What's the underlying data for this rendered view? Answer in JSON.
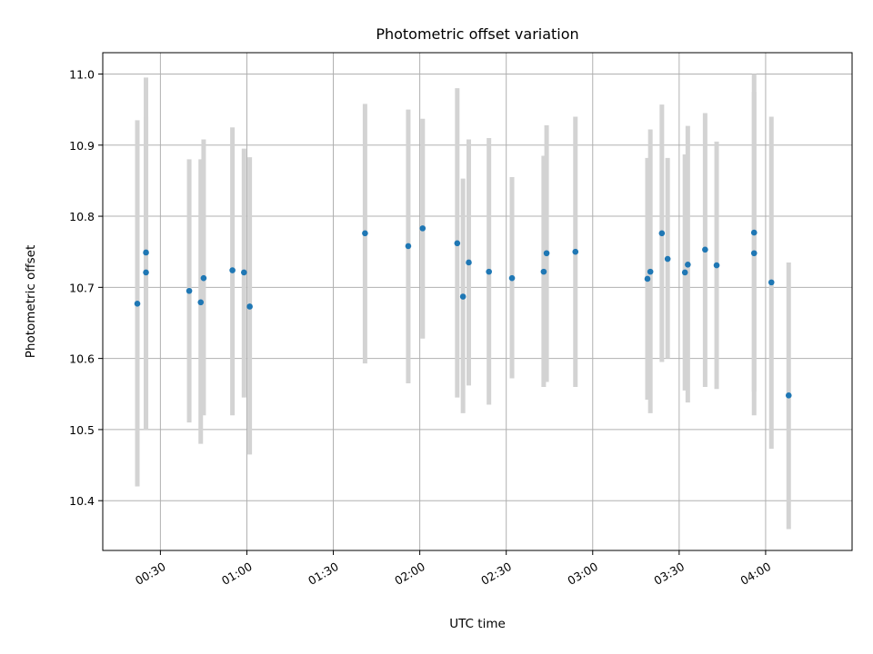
{
  "chart_data": {
    "type": "scatter",
    "title": "Photometric offset variation",
    "xlabel": "UTC time",
    "ylabel": "Photometric offset",
    "x_range": [
      "00:10",
      "04:30"
    ],
    "ylim": [
      10.33,
      11.03
    ],
    "x_ticks": [
      "00:30",
      "01:00",
      "01:30",
      "02:00",
      "02:30",
      "03:00",
      "03:30",
      "04:00"
    ],
    "y_ticks": [
      "10.4",
      "10.5",
      "10.6",
      "10.7",
      "10.8",
      "10.9",
      "11.0"
    ],
    "grid": true,
    "colors": {
      "point": "#1f77b4",
      "errorbar": "#d3d3d3",
      "grid": "#b0b0b0"
    },
    "points": [
      {
        "x": "00:22",
        "y": 10.677,
        "ylo": 10.42,
        "yhi": 10.935
      },
      {
        "x": "00:25",
        "y": 10.749,
        "ylo": 10.5,
        "yhi": 10.995
      },
      {
        "x": "00:25",
        "y": 10.721,
        "ylo": 10.5,
        "yhi": 10.94
      },
      {
        "x": "00:40",
        "y": 10.695,
        "ylo": 10.51,
        "yhi": 10.88
      },
      {
        "x": "00:44",
        "y": 10.679,
        "ylo": 10.48,
        "yhi": 10.88
      },
      {
        "x": "00:45",
        "y": 10.713,
        "ylo": 10.52,
        "yhi": 10.908
      },
      {
        "x": "00:55",
        "y": 10.724,
        "ylo": 10.52,
        "yhi": 10.925
      },
      {
        "x": "00:59",
        "y": 10.721,
        "ylo": 10.545,
        "yhi": 10.895
      },
      {
        "x": "01:01",
        "y": 10.673,
        "ylo": 10.465,
        "yhi": 10.883
      },
      {
        "x": "01:41",
        "y": 10.776,
        "ylo": 10.593,
        "yhi": 10.958
      },
      {
        "x": "01:56",
        "y": 10.758,
        "ylo": 10.565,
        "yhi": 10.95
      },
      {
        "x": "02:01",
        "y": 10.783,
        "ylo": 10.628,
        "yhi": 10.937
      },
      {
        "x": "02:13",
        "y": 10.762,
        "ylo": 10.545,
        "yhi": 10.98
      },
      {
        "x": "02:15",
        "y": 10.687,
        "ylo": 10.523,
        "yhi": 10.853
      },
      {
        "x": "02:17",
        "y": 10.735,
        "ylo": 10.562,
        "yhi": 10.908
      },
      {
        "x": "02:24",
        "y": 10.722,
        "ylo": 10.535,
        "yhi": 10.91
      },
      {
        "x": "02:32",
        "y": 10.713,
        "ylo": 10.572,
        "yhi": 10.855
      },
      {
        "x": "02:43",
        "y": 10.722,
        "ylo": 10.56,
        "yhi": 10.885
      },
      {
        "x": "02:44",
        "y": 10.748,
        "ylo": 10.567,
        "yhi": 10.928
      },
      {
        "x": "02:54",
        "y": 10.75,
        "ylo": 10.56,
        "yhi": 10.94
      },
      {
        "x": "03:19",
        "y": 10.712,
        "ylo": 10.542,
        "yhi": 10.882
      },
      {
        "x": "03:20",
        "y": 10.722,
        "ylo": 10.523,
        "yhi": 10.922
      },
      {
        "x": "03:24",
        "y": 10.776,
        "ylo": 10.595,
        "yhi": 10.957
      },
      {
        "x": "03:26",
        "y": 10.74,
        "ylo": 10.6,
        "yhi": 10.882
      },
      {
        "x": "03:32",
        "y": 10.721,
        "ylo": 10.555,
        "yhi": 10.887
      },
      {
        "x": "03:33",
        "y": 10.732,
        "ylo": 10.538,
        "yhi": 10.927
      },
      {
        "x": "03:39",
        "y": 10.753,
        "ylo": 10.56,
        "yhi": 10.945
      },
      {
        "x": "03:43",
        "y": 10.731,
        "ylo": 10.557,
        "yhi": 10.905
      },
      {
        "x": "03:56",
        "y": 10.777,
        "ylo": 10.553,
        "yhi": 11.0
      },
      {
        "x": "03:56",
        "y": 10.748,
        "ylo": 10.52,
        "yhi": 10.975
      },
      {
        "x": "04:02",
        "y": 10.707,
        "ylo": 10.473,
        "yhi": 10.94
      },
      {
        "x": "04:08",
        "y": 10.548,
        "ylo": 10.36,
        "yhi": 10.735
      }
    ]
  }
}
